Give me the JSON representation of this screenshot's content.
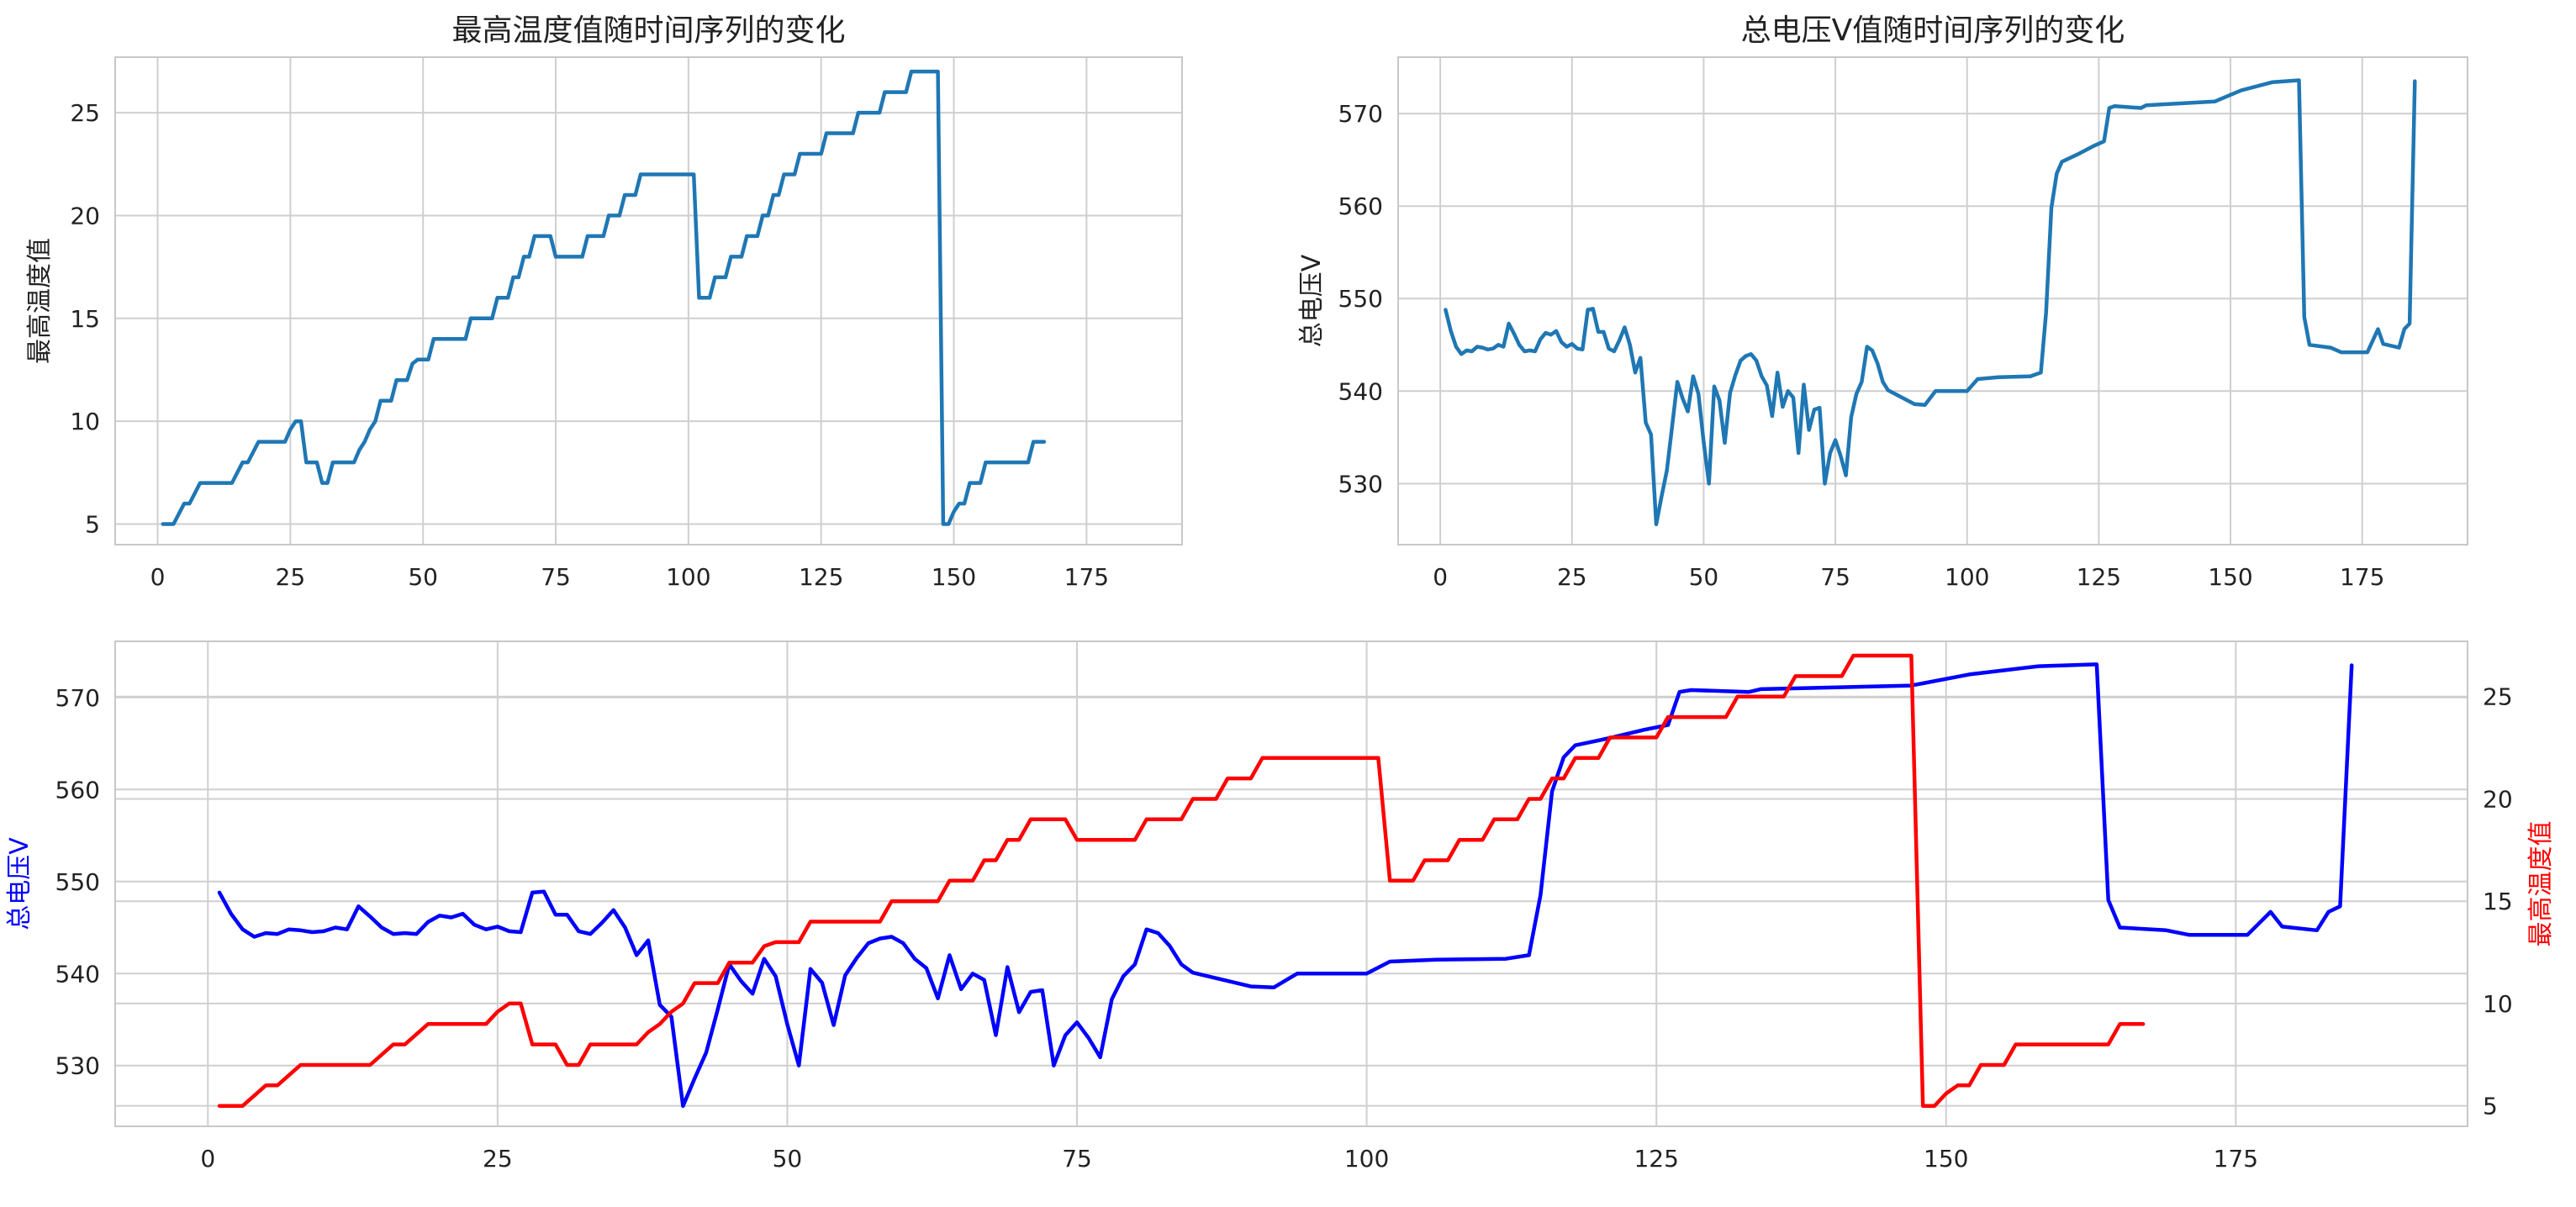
{
  "colors": {
    "series_default": "#1f77b4",
    "voltage_combined": "#0000ff",
    "temp_combined": "#ff0000",
    "grid": "#cfcfcf"
  },
  "chart_data": [
    {
      "id": "temp",
      "type": "line",
      "title": "最高温度值随时间序列的变化",
      "xlabel": "",
      "ylabel": "最高温度值",
      "xlim": [
        -8,
        193
      ],
      "ylim": [
        4.0,
        27.7
      ],
      "xticks": [
        0,
        25,
        50,
        75,
        100,
        125,
        150,
        175
      ],
      "yticks": [
        5,
        10,
        15,
        20,
        25
      ],
      "grid": true,
      "series": [
        {
          "name": "",
          "points": [
            [
              1,
              5
            ],
            [
              3,
              5
            ],
            [
              5,
              6
            ],
            [
              6,
              6
            ],
            [
              8,
              7
            ],
            [
              12,
              7
            ],
            [
              14,
              7
            ],
            [
              16,
              8
            ],
            [
              17,
              8
            ],
            [
              19,
              9
            ],
            [
              24,
              9
            ],
            [
              25,
              9.6
            ],
            [
              26,
              10
            ],
            [
              27,
              10
            ],
            [
              28,
              8
            ],
            [
              30,
              8
            ],
            [
              31,
              7
            ],
            [
              32,
              7
            ],
            [
              33,
              8
            ],
            [
              37,
              8
            ],
            [
              38,
              8.6
            ],
            [
              39,
              9
            ],
            [
              40,
              9.6
            ],
            [
              41,
              10
            ],
            [
              42,
              11
            ],
            [
              44,
              11
            ],
            [
              45,
              12
            ],
            [
              47,
              12
            ],
            [
              48,
              12.8
            ],
            [
              49,
              13
            ],
            [
              51,
              13
            ],
            [
              52,
              14
            ],
            [
              58,
              14
            ],
            [
              59,
              15
            ],
            [
              63,
              15
            ],
            [
              64,
              16
            ],
            [
              66,
              16
            ],
            [
              67,
              17
            ],
            [
              68,
              17
            ],
            [
              69,
              18
            ],
            [
              70,
              18
            ],
            [
              71,
              19
            ],
            [
              74,
              19
            ],
            [
              75,
              18
            ],
            [
              80,
              18
            ],
            [
              81,
              19
            ],
            [
              84,
              19
            ],
            [
              85,
              20
            ],
            [
              87,
              20
            ],
            [
              88,
              21
            ],
            [
              90,
              21
            ],
            [
              91,
              22
            ],
            [
              101,
              22
            ],
            [
              102,
              16
            ],
            [
              104,
              16
            ],
            [
              105,
              17
            ],
            [
              107,
              17
            ],
            [
              108,
              18
            ],
            [
              110,
              18
            ],
            [
              111,
              19
            ],
            [
              113,
              19
            ],
            [
              114,
              20
            ],
            [
              115,
              20
            ],
            [
              116,
              21
            ],
            [
              117,
              21
            ],
            [
              118,
              22
            ],
            [
              120,
              22
            ],
            [
              121,
              23
            ],
            [
              125,
              23
            ],
            [
              126,
              24
            ],
            [
              131,
              24
            ],
            [
              132,
              25
            ],
            [
              136,
              25
            ],
            [
              137,
              26
            ],
            [
              141,
              26
            ],
            [
              142,
              27
            ],
            [
              147,
              27
            ],
            [
              148,
              5
            ],
            [
              149,
              5
            ],
            [
              150,
              5.6
            ],
            [
              151,
              6
            ],
            [
              152,
              6
            ],
            [
              153,
              7
            ],
            [
              155,
              7
            ],
            [
              156,
              8
            ],
            [
              164,
              8
            ],
            [
              165,
              9
            ],
            [
              167,
              9
            ]
          ]
        }
      ]
    },
    {
      "id": "voltage",
      "type": "line",
      "title": "总电压V值随时间序列的变化",
      "xlabel": "",
      "ylabel": "总电压V",
      "xlim": [
        -8,
        195
      ],
      "ylim": [
        523.4,
        576.1
      ],
      "xticks": [
        0,
        25,
        50,
        75,
        100,
        125,
        150,
        175
      ],
      "yticks": [
        530,
        540,
        550,
        560,
        570
      ],
      "grid": true,
      "series": [
        {
          "name": "",
          "points": [
            [
              1,
              548.8
            ],
            [
              2,
              546.5
            ],
            [
              3,
              544.8
            ],
            [
              4,
              544.0
            ],
            [
              5,
              544.4
            ],
            [
              6,
              544.3
            ],
            [
              7,
              544.8
            ],
            [
              8,
              544.7
            ],
            [
              9,
              544.5
            ],
            [
              10,
              544.6
            ],
            [
              11,
              545.0
            ],
            [
              12,
              544.8
            ],
            [
              13,
              547.3
            ],
            [
              14,
              546.2
            ],
            [
              15,
              545.0
            ],
            [
              16,
              544.3
            ],
            [
              17,
              544.4
            ],
            [
              18,
              544.3
            ],
            [
              19,
              545.6
            ],
            [
              20,
              546.3
            ],
            [
              21,
              546.1
            ],
            [
              22,
              546.5
            ],
            [
              23,
              545.3
            ],
            [
              24,
              544.8
            ],
            [
              25,
              545.1
            ],
            [
              26,
              544.6
            ],
            [
              27,
              544.5
            ],
            [
              28,
              548.8
            ],
            [
              29,
              548.9
            ],
            [
              30,
              546.4
            ],
            [
              31,
              546.4
            ],
            [
              32,
              544.6
            ],
            [
              33,
              544.3
            ],
            [
              34,
              545.5
            ],
            [
              35,
              546.9
            ],
            [
              36,
              545.0
            ],
            [
              37,
              542.0
            ],
            [
              38,
              543.6
            ],
            [
              39,
              536.6
            ],
            [
              40,
              535.3
            ],
            [
              41,
              525.6
            ],
            [
              42,
              528.6
            ],
            [
              43,
              531.4
            ],
            [
              44,
              536.1
            ],
            [
              45,
              541.0
            ],
            [
              46,
              539.2
            ],
            [
              47,
              537.8
            ],
            [
              48,
              541.6
            ],
            [
              49,
              539.7
            ],
            [
              50,
              534.5
            ],
            [
              51,
              530.0
            ],
            [
              52,
              540.5
            ],
            [
              53,
              539.0
            ],
            [
              54,
              534.4
            ],
            [
              55,
              539.8
            ],
            [
              56,
              541.7
            ],
            [
              57,
              543.3
            ],
            [
              58,
              543.8
            ],
            [
              59,
              544.0
            ],
            [
              60,
              543.3
            ],
            [
              61,
              541.6
            ],
            [
              62,
              540.6
            ],
            [
              63,
              537.3
            ],
            [
              64,
              542.0
            ],
            [
              65,
              538.3
            ],
            [
              66,
              540.0
            ],
            [
              67,
              539.3
            ],
            [
              68,
              533.3
            ],
            [
              69,
              540.7
            ],
            [
              70,
              535.8
            ],
            [
              71,
              538.0
            ],
            [
              72,
              538.2
            ],
            [
              73,
              530.0
            ],
            [
              74,
              533.3
            ],
            [
              75,
              534.7
            ],
            [
              76,
              533.0
            ],
            [
              77,
              530.9
            ],
            [
              78,
              537.2
            ],
            [
              79,
              539.7
            ],
            [
              80,
              541.0
            ],
            [
              81,
              544.8
            ],
            [
              82,
              544.4
            ],
            [
              83,
              543.0
            ],
            [
              84,
              541.0
            ],
            [
              85,
              540.1
            ],
            [
              90,
              538.6
            ],
            [
              92,
              538.5
            ],
            [
              94,
              540.0
            ],
            [
              100,
              540.0
            ],
            [
              102,
              541.3
            ],
            [
              106,
              541.5
            ],
            [
              112,
              541.6
            ],
            [
              114,
              542.0
            ],
            [
              115,
              548.5
            ],
            [
              116,
              559.8
            ],
            [
              117,
              563.5
            ],
            [
              118,
              564.8
            ],
            [
              121,
              565.6
            ],
            [
              124,
              566.5
            ],
            [
              126,
              567.0
            ],
            [
              127,
              570.6
            ],
            [
              128,
              570.8
            ],
            [
              133,
              570.6
            ],
            [
              134,
              570.9
            ],
            [
              147,
              571.3
            ],
            [
              152,
              572.5
            ],
            [
              158,
              573.4
            ],
            [
              163,
              573.6
            ],
            [
              164,
              548.0
            ],
            [
              165,
              545.0
            ],
            [
              169,
              544.7
            ],
            [
              171,
              544.2
            ],
            [
              176,
              544.2
            ],
            [
              178,
              546.7
            ],
            [
              179,
              545.1
            ],
            [
              182,
              544.7
            ],
            [
              183,
              546.7
            ],
            [
              184,
              547.3
            ],
            [
              185,
              573.5
            ]
          ]
        }
      ]
    },
    {
      "id": "combined",
      "type": "line",
      "title": "",
      "xlabel": "",
      "ylabel_left": "总电压V",
      "ylabel_right": "最高温度值",
      "xlim": [
        -8,
        195
      ],
      "ylim_left": [
        523.4,
        576.1
      ],
      "ylim_right": [
        4.0,
        27.7
      ],
      "xticks": [
        0,
        25,
        50,
        75,
        100,
        125,
        150,
        175
      ],
      "yticks_left": [
        530,
        540,
        550,
        560,
        570
      ],
      "yticks_right": [
        5,
        10,
        15,
        20,
        25
      ],
      "grid": true,
      "series": [
        {
          "name": "",
          "axis": "left",
          "color": "#0000ff",
          "ref": "voltage"
        },
        {
          "name": "",
          "axis": "right",
          "color": "#ff0000",
          "ref": "temp"
        }
      ]
    }
  ]
}
